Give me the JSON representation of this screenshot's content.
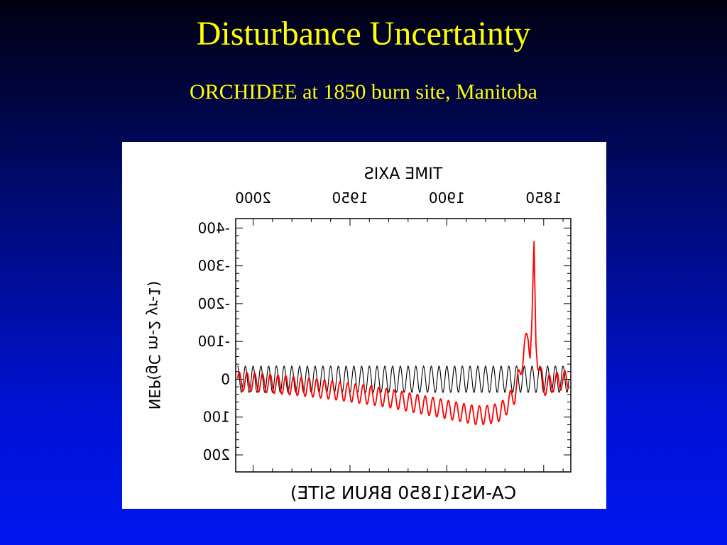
{
  "slide": {
    "title": "Disturbance Uncertainty",
    "subtitle": "ORCHIDEE at 1850 burn site, Manitoba"
  },
  "colors": {
    "title": "#ffff00",
    "model_series": "#ff0000",
    "reference_series": "#000000",
    "panel": "#ffffff"
  },
  "chart_data": {
    "type": "line",
    "rendering": "mirrored horizontally (all text appears reversed)",
    "title": "CA-NS1(1850 BRUN SITE)",
    "top_axis_label": "TIME AXIS",
    "ylabel": "NEP(gC m-2 yr-1)",
    "x_ticks": [
      1850,
      1900,
      1950,
      2000
    ],
    "xlim": [
      1836,
      2009
    ],
    "y_ticks": [
      -400,
      -300,
      -200,
      -100,
      0,
      100,
      200
    ],
    "y_tick_labels": [
      "-400",
      "-300",
      "-200",
      "-100",
      "0",
      "100",
      "200"
    ],
    "ylim": [
      -425,
      245
    ],
    "y_direction": "inverted (negative at top)",
    "grid": false,
    "series": [
      {
        "color": "#000000",
        "description": "regular oscillation between about -40 and +30",
        "x": [
          1837,
          1841,
          1845,
          1850,
          1855,
          1860,
          1863,
          1870,
          1880,
          1890,
          1900,
          1910,
          1920,
          1930,
          1940,
          1950,
          1960,
          1970,
          1980,
          1990,
          2000,
          2008
        ],
        "y": [
          0,
          0,
          0,
          0,
          0,
          0,
          0,
          0,
          0,
          0,
          0,
          0,
          0,
          0,
          0,
          0,
          0,
          0,
          0,
          0,
          0,
          0
        ],
        "oscillation_amplitude": 35,
        "oscillation_period_years": 4
      },
      {
        "color": "#ff0000",
        "description": "spike after burn then slow recovery with seasonal oscillation",
        "x": [
          1837,
          1842,
          1846,
          1850,
          1852,
          1853,
          1854,
          1855,
          1856,
          1857,
          1858,
          1860,
          1862,
          1863,
          1865,
          1868,
          1870,
          1872,
          1875,
          1880,
          1885,
          1890,
          1900,
          1910,
          1920,
          1930,
          1940,
          1950,
          1960,
          1970,
          1980,
          1990,
          2000,
          2008
        ],
        "y": [
          0,
          5,
          10,
          20,
          -20,
          -50,
          -100,
          -340,
          -160,
          -80,
          -110,
          -85,
          -20,
          0,
          40,
          60,
          75,
          85,
          90,
          95,
          95,
          90,
          80,
          70,
          60,
          50,
          42,
          35,
          28,
          22,
          17,
          12,
          8,
          5
        ],
        "oscillation_amplitude": 25,
        "oscillation_period_years": 4
      }
    ]
  }
}
